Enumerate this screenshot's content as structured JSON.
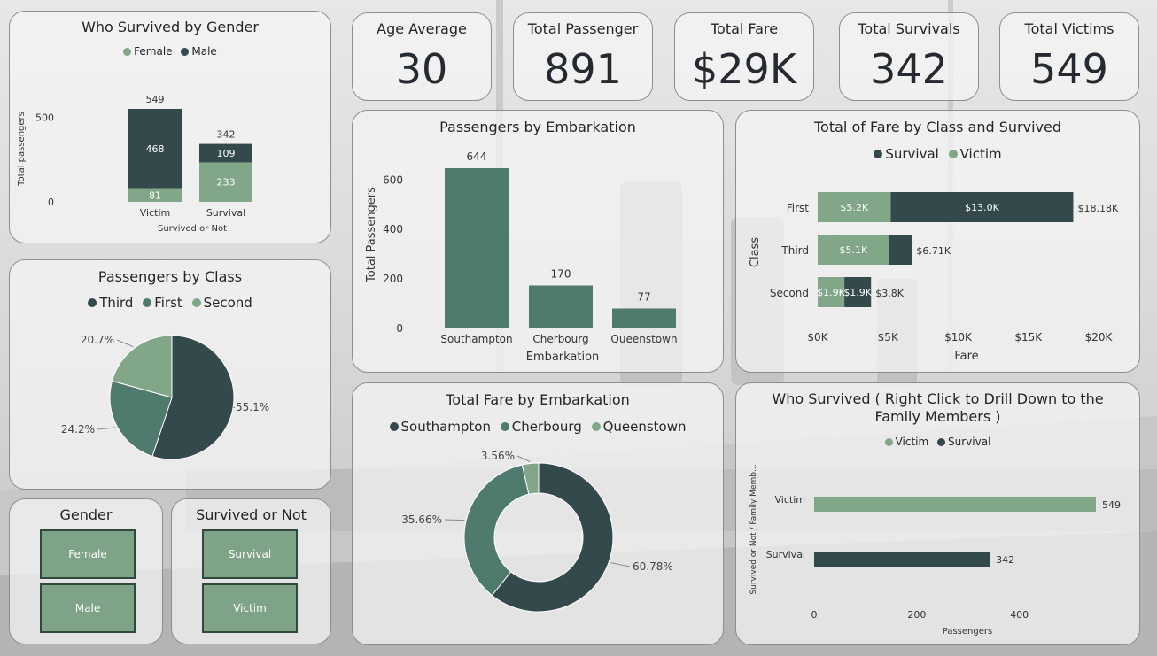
{
  "colors": {
    "dark": "#34494b",
    "mid": "#4f7a6e",
    "light": "#82a688",
    "text": "#252525"
  },
  "kpis": [
    {
      "label": "Age Average",
      "value": "30"
    },
    {
      "label": "Total Passenger",
      "value": "891"
    },
    {
      "label": "Total Fare",
      "value": "$29K"
    },
    {
      "label": "Total Survivals",
      "value": "342"
    },
    {
      "label": "Total Victims",
      "value": "549"
    }
  ],
  "gender_chart": {
    "chart_data": {
      "type": "bar",
      "title": "Who Survived by Gender",
      "xlabel": "Survived or Not",
      "ylabel": "Total passengers",
      "categories": [
        "Victim",
        "Survival"
      ],
      "series": [
        {
          "name": "Female",
          "values": [
            81,
            233
          ]
        },
        {
          "name": "Male",
          "values": [
            468,
            109
          ]
        }
      ],
      "totals": [
        549,
        342
      ],
      "yticks": [
        0,
        500
      ],
      "legend": [
        "Female",
        "Male"
      ],
      "legend_position": "top"
    }
  },
  "class_chart": {
    "chart_data": {
      "type": "pie",
      "title": "Passengers by Class",
      "labels": [
        "Third",
        "First",
        "Second"
      ],
      "values": [
        55.1,
        24.2,
        20.7
      ],
      "value_labels": [
        "55.1%",
        "24.2%",
        "20.7%"
      ],
      "legend_position": "top"
    }
  },
  "embark_chart": {
    "chart_data": {
      "type": "bar",
      "title": "Passengers by Embarkation",
      "xlabel": "Embarkation",
      "ylabel": "Total Passengers",
      "categories": [
        "Southampton",
        "Cherbourg",
        "Queenstown"
      ],
      "values": [
        644,
        170,
        77
      ],
      "yticks": [
        0,
        200,
        400,
        600
      ],
      "ylim": [
        0,
        700
      ]
    }
  },
  "fare_class_chart": {
    "chart_data": {
      "type": "bar",
      "orientation": "horizontal",
      "title": "Total of Fare by Class and Survived",
      "xlabel": "Fare",
      "ylabel": "Class",
      "categories": [
        "First",
        "Third",
        "Second"
      ],
      "series": [
        {
          "name": "Victim",
          "values": [
            5.2,
            5.1,
            1.9
          ],
          "labels": [
            "$5.2K",
            "$5.1K",
            "$1.9K"
          ]
        },
        {
          "name": "Survival",
          "values": [
            13.0,
            1.61,
            1.9
          ],
          "labels": [
            "$13.0K",
            "",
            "$1.9K"
          ]
        }
      ],
      "totals": [
        "$18.18K",
        "$6.71K",
        "$3.8K"
      ],
      "xticks": [
        "$0K",
        "$5K",
        "$10K",
        "$15K",
        "$20K"
      ],
      "xlim": [
        0,
        20
      ],
      "legend": [
        "Survival",
        "Victim"
      ],
      "legend_position": "top"
    }
  },
  "fare_embark_chart": {
    "chart_data": {
      "type": "pie",
      "subtype": "donut",
      "title": "Total Fare by Embarkation",
      "labels": [
        "Southampton",
        "Cherbourg",
        "Queenstown"
      ],
      "values": [
        60.78,
        35.66,
        3.56
      ],
      "value_labels": [
        "60.78%",
        "35.66%",
        "3.56%"
      ],
      "legend_position": "top"
    }
  },
  "family_chart": {
    "chart_data": {
      "type": "bar",
      "orientation": "horizontal",
      "title": "Who Survived ( Right Click to Drill Down to the Family Members )",
      "xlabel": "Passengers",
      "ylabel": "Survived or Not / Family Memb...",
      "categories": [
        "Victim",
        "Survival"
      ],
      "values": [
        549,
        342
      ],
      "xticks": [
        0,
        200,
        400
      ],
      "xlim": [
        0,
        600
      ],
      "legend": [
        "Victim",
        "Survival"
      ],
      "legend_position": "top"
    }
  },
  "slicers": {
    "gender": {
      "title": "Gender",
      "options": [
        "Female",
        "Male"
      ]
    },
    "survived": {
      "title": "Survived or Not",
      "options": [
        "Survival",
        "Victim"
      ]
    }
  }
}
